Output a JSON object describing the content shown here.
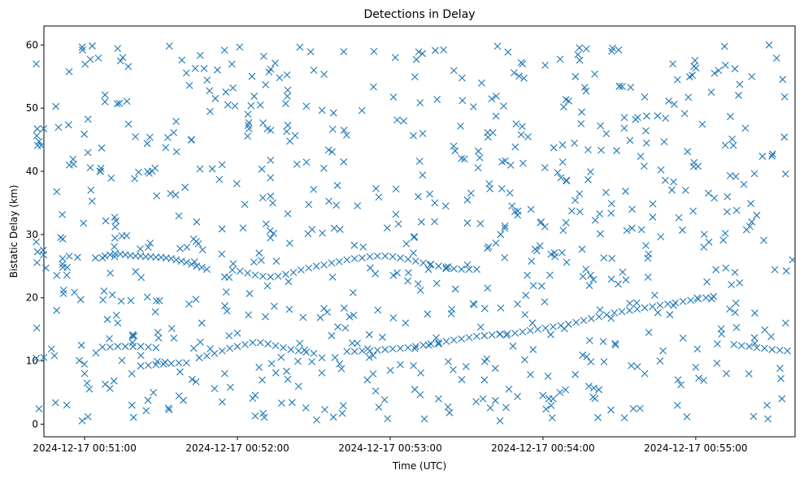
{
  "chart_data": {
    "type": "scatter",
    "title": "Detections in Delay",
    "xlabel": "Time (UTC)",
    "ylabel": "Bistatic Delay (km)",
    "marker": "x",
    "color": "#1f77b4",
    "x_unit": "seconds after 2024-12-17 00:50:00 UTC",
    "xlim": [
      44,
      339
    ],
    "ylim": [
      -2,
      63
    ],
    "x_ticks": [
      {
        "value": 60,
        "label": "2024-12-17 00:51:00"
      },
      {
        "value": 120,
        "label": "2024-12-17 00:52:00"
      },
      {
        "value": 180,
        "label": "2024-12-17 00:53:00"
      },
      {
        "value": 240,
        "label": "2024-12-17 00:54:00"
      },
      {
        "value": 300,
        "label": "2024-12-17 00:55:00"
      }
    ],
    "y_ticks": [
      0,
      10,
      20,
      30,
      40,
      50,
      60
    ],
    "grid": false,
    "tracks": [
      {
        "points": [
          [
            67,
            26.3
          ],
          [
            68,
            26.6
          ],
          [
            70,
            26.8
          ],
          [
            72,
            27.0
          ],
          [
            74,
            26.9
          ],
          [
            76,
            26.8
          ],
          [
            78,
            26.7
          ],
          [
            80,
            26.6
          ],
          [
            82,
            26.6
          ],
          [
            84,
            26.5
          ],
          [
            86,
            26.5
          ],
          [
            88,
            26.4
          ],
          [
            90,
            26.4
          ],
          [
            92,
            26.3
          ],
          [
            94,
            26.2
          ],
          [
            96,
            26.0
          ],
          [
            98,
            25.8
          ],
          [
            100,
            25.6
          ],
          [
            102,
            25.3
          ],
          [
            104,
            25.0
          ],
          [
            106,
            24.8
          ],
          [
            108,
            24.5
          ]
        ]
      },
      {
        "points": [
          [
            118,
            24.4
          ],
          [
            121,
            24.2
          ],
          [
            124,
            23.9
          ],
          [
            127,
            23.6
          ],
          [
            130,
            23.4
          ],
          [
            133,
            23.3
          ],
          [
            136,
            23.4
          ],
          [
            139,
            23.7
          ],
          [
            142,
            24.0
          ],
          [
            145,
            24.4
          ],
          [
            148,
            24.7
          ],
          [
            151,
            25.0
          ],
          [
            154,
            25.2
          ],
          [
            157,
            25.5
          ],
          [
            160,
            25.7
          ],
          [
            163,
            26.0
          ],
          [
            166,
            26.2
          ],
          [
            169,
            26.3
          ],
          [
            172,
            26.5
          ],
          [
            175,
            26.6
          ],
          [
            178,
            26.6
          ],
          [
            181,
            26.5
          ],
          [
            184,
            26.3
          ],
          [
            187,
            26.1
          ],
          [
            190,
            25.8
          ],
          [
            193,
            25.5
          ],
          [
            196,
            25.3
          ],
          [
            199,
            25.0
          ],
          [
            202,
            24.8
          ],
          [
            205,
            24.6
          ],
          [
            208,
            24.5
          ],
          [
            211,
            24.5
          ],
          [
            214,
            24.5
          ]
        ]
      },
      {
        "points": [
          [
            67,
            12.2
          ],
          [
            70,
            12.2
          ],
          [
            73,
            12.3
          ],
          [
            76,
            12.3
          ],
          [
            79,
            12.3
          ],
          [
            82,
            12.3
          ],
          [
            85,
            12.2
          ],
          [
            88,
            12.1
          ]
        ]
      },
      {
        "points": [
          [
            82,
            9.2
          ],
          [
            85,
            9.3
          ],
          [
            88,
            9.4
          ],
          [
            91,
            9.5
          ],
          [
            94,
            9.6
          ],
          [
            97,
            9.7
          ],
          [
            100,
            9.7
          ]
        ]
      },
      {
        "points": [
          [
            105,
            10.5
          ],
          [
            108,
            10.8
          ],
          [
            111,
            11.2
          ],
          [
            114,
            11.6
          ],
          [
            117,
            12.0
          ],
          [
            120,
            12.3
          ],
          [
            123,
            12.6
          ],
          [
            126,
            12.9
          ],
          [
            129,
            12.9
          ],
          [
            132,
            12.7
          ],
          [
            135,
            12.4
          ],
          [
            138,
            12.1
          ],
          [
            141,
            11.8
          ],
          [
            144,
            11.6
          ],
          [
            147,
            11.4
          ],
          [
            150,
            11.2
          ]
        ]
      },
      {
        "points": [
          [
            163,
            11.5
          ],
          [
            166,
            11.5
          ],
          [
            169,
            11.6
          ],
          [
            172,
            11.6
          ],
          [
            175,
            11.7
          ],
          [
            178,
            11.8
          ],
          [
            181,
            11.9
          ],
          [
            184,
            12.0
          ],
          [
            187,
            12.1
          ],
          [
            190,
            12.3
          ],
          [
            193,
            12.5
          ],
          [
            196,
            12.7
          ],
          [
            199,
            12.9
          ],
          [
            202,
            13.1
          ],
          [
            205,
            13.3
          ],
          [
            208,
            13.5
          ],
          [
            211,
            13.7
          ],
          [
            214,
            13.9
          ],
          [
            217,
            14.0
          ],
          [
            220,
            14.1
          ],
          [
            223,
            14.2
          ],
          [
            226,
            14.3
          ],
          [
            229,
            14.4
          ],
          [
            232,
            14.6
          ],
          [
            235,
            14.8
          ],
          [
            238,
            15.0
          ],
          [
            241,
            15.2
          ],
          [
            244,
            15.4
          ],
          [
            247,
            15.6
          ],
          [
            250,
            15.8
          ],
          [
            253,
            16.1
          ],
          [
            256,
            16.4
          ],
          [
            259,
            16.7
          ],
          [
            262,
            17.0
          ],
          [
            265,
            17.3
          ],
          [
            268,
            17.6
          ],
          [
            271,
            17.8
          ],
          [
            274,
            18.0
          ],
          [
            277,
            18.2
          ],
          [
            280,
            18.4
          ],
          [
            283,
            18.6
          ],
          [
            286,
            18.8
          ],
          [
            289,
            19.0
          ],
          [
            292,
            19.2
          ],
          [
            295,
            19.4
          ],
          [
            298,
            19.6
          ],
          [
            301,
            19.8
          ],
          [
            304,
            20.0
          ],
          [
            307,
            20.2
          ]
        ]
      },
      {
        "points": [
          [
            315,
            12.6
          ],
          [
            318,
            12.4
          ],
          [
            321,
            12.3
          ],
          [
            324,
            12.1
          ],
          [
            327,
            12.0
          ],
          [
            330,
            11.8
          ],
          [
            333,
            11.7
          ],
          [
            336,
            11.6
          ]
        ]
      }
    ],
    "clutter_points": [
      [
        41,
        57
      ],
      [
        68,
        51
      ],
      [
        75,
        58
      ],
      [
        102,
        45
      ],
      [
        150,
        56
      ],
      [
        182,
        58
      ],
      [
        232,
        57
      ],
      [
        267,
        59
      ],
      [
        291,
        57
      ],
      [
        322,
        55
      ],
      [
        54,
        41
      ],
      [
        66,
        40
      ],
      [
        85,
        28
      ],
      [
        104,
        32
      ],
      [
        133,
        39
      ],
      [
        158,
        31
      ],
      [
        191,
        36
      ],
      [
        225,
        31
      ],
      [
        247,
        39
      ],
      [
        275,
        34
      ],
      [
        296,
        37
      ],
      [
        322,
        32
      ],
      [
        338,
        26
      ],
      [
        49,
        18
      ],
      [
        60,
        8
      ],
      [
        73,
        16
      ],
      [
        87,
        5
      ],
      [
        101,
        19
      ],
      [
        115,
        8
      ],
      [
        131,
        17
      ],
      [
        144,
        6
      ],
      [
        157,
        14
      ],
      [
        171,
        7
      ],
      [
        186,
        16
      ],
      [
        199,
        4
      ],
      [
        217,
        7
      ],
      [
        230,
        19
      ],
      [
        244,
        4
      ],
      [
        258,
        6
      ],
      [
        272,
        1
      ],
      [
        286,
        10
      ],
      [
        300,
        9
      ],
      [
        312,
        8
      ],
      [
        328,
        3
      ]
    ],
    "clutter_seed": 7,
    "clutter_count": 720
  }
}
